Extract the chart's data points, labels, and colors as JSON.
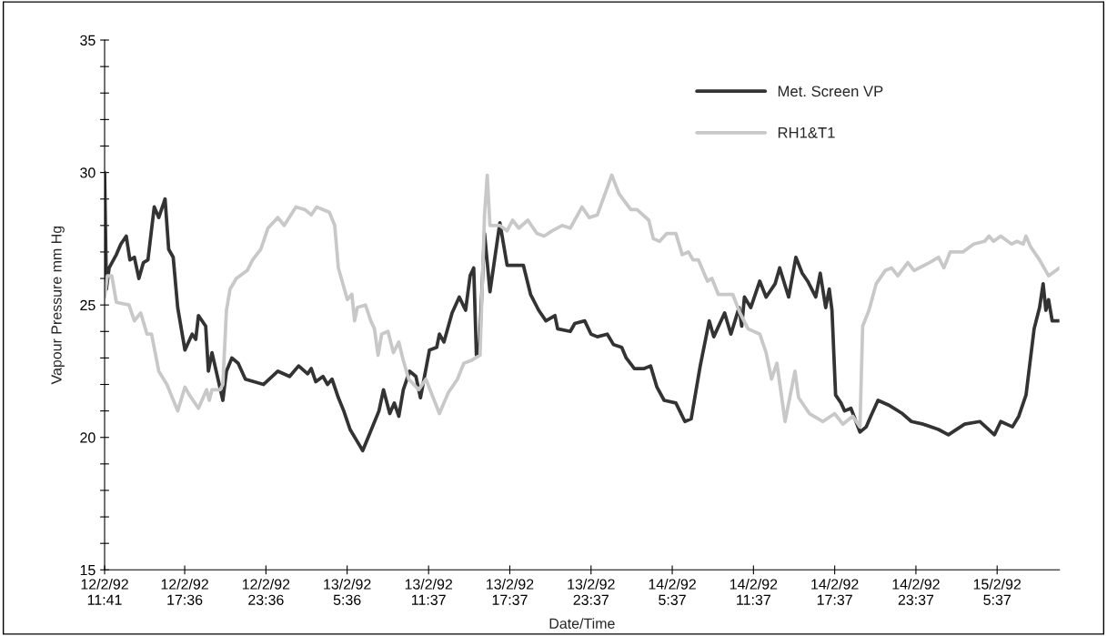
{
  "chart_data": {
    "type": "line",
    "xlabel": "Date/Time",
    "ylabel": "Vapour Pressure mm Hg",
    "xlim": [
      "1992-02-12T11:41",
      "1992-02-15T10:13"
    ],
    "ylim": [
      15,
      35
    ],
    "xticks": [
      {
        "value": "1992-02-12T11:41",
        "label": "12/2/92\n11:41"
      },
      {
        "value": "1992-02-12T17:36",
        "label": "12/2/92\n17:36"
      },
      {
        "value": "1992-02-12T23:36",
        "label": "12/2/92\n23:36"
      },
      {
        "value": "1992-02-13T05:36",
        "label": "13/2/92\n5:36"
      },
      {
        "value": "1992-02-13T11:37",
        "label": "13/2/92\n11:37"
      },
      {
        "value": "1992-02-13T17:37",
        "label": "13/2/92\n17:37"
      },
      {
        "value": "1992-02-13T23:37",
        "label": "13/2/92\n23:37"
      },
      {
        "value": "1992-02-14T05:37",
        "label": "14/2/92\n5:37"
      },
      {
        "value": "1992-02-14T11:37",
        "label": "14/2/92\n11:37"
      },
      {
        "value": "1992-02-14T17:37",
        "label": "14/2/92\n17:37"
      },
      {
        "value": "1992-02-14T23:37",
        "label": "14/2/92\n23:37"
      },
      {
        "value": "1992-02-15T05:37",
        "label": "15/2/92\n5:37"
      }
    ],
    "yticks": [
      15,
      {
        "value": 16,
        "label": null
      },
      {
        "value": 17,
        "label": null
      },
      {
        "value": 18,
        "label": null
      },
      {
        "value": 19,
        "label": null
      },
      20,
      {
        "value": 21,
        "label": null
      },
      {
        "value": 22,
        "label": null
      },
      {
        "value": 23,
        "label": null
      },
      {
        "value": 24,
        "label": null
      },
      25,
      {
        "value": 26,
        "label": null
      },
      {
        "value": 27,
        "label": null
      },
      {
        "value": 28,
        "label": null
      },
      {
        "value": 29,
        "label": null
      },
      30,
      {
        "value": 31,
        "label": null
      },
      {
        "value": 32,
        "label": null
      },
      {
        "value": 33,
        "label": null
      },
      {
        "value": 34,
        "label": null
      },
      35
    ],
    "grid": false,
    "legend": "top right",
    "marker": "none",
    "line_style": "solid",
    "series": [
      {
        "name": "Met. Screen VP",
        "color": "#333333",
        "x": [
          "1992-02-12T11:41",
          "1992-02-12T11:49",
          "1992-02-12T12:01",
          "1992-02-12T12:33",
          "1992-02-12T12:53",
          "1992-02-12T13:17",
          "1992-02-12T13:33",
          "1992-02-12T13:53",
          "1992-02-12T14:13",
          "1992-02-12T14:33",
          "1992-02-12T14:53",
          "1992-02-12T15:21",
          "1992-02-12T15:41",
          "1992-02-12T16:09",
          "1992-02-12T16:25",
          "1992-02-12T16:45",
          "1992-02-12T17:05",
          "1992-02-12T17:37",
          "1992-02-12T18:09",
          "1992-02-12T18:25",
          "1992-02-12T18:37",
          "1992-02-12T19:09",
          "1992-02-12T19:21",
          "1992-02-12T19:37",
          "1992-02-12T20:25",
          "1992-02-12T20:41",
          "1992-02-12T21:05",
          "1992-02-12T21:33",
          "1992-02-12T22:05",
          "1992-02-12T23:25",
          "1992-02-13T00:29",
          "1992-02-13T01:21",
          "1992-02-13T02:01",
          "1992-02-13T02:41",
          "1992-02-13T02:57",
          "1992-02-13T03:17",
          "1992-02-13T03:49",
          "1992-02-13T04:09",
          "1992-02-13T04:29",
          "1992-02-13T04:57",
          "1992-02-13T05:21",
          "1992-02-13T05:49",
          "1992-02-13T06:17",
          "1992-02-13T06:45",
          "1992-02-13T07:09",
          "1992-02-13T07:57",
          "1992-02-13T08:17",
          "1992-02-13T08:45",
          "1992-02-13T09:05",
          "1992-02-13T09:25",
          "1992-02-13T09:45",
          "1992-02-13T10:13",
          "1992-02-13T10:41",
          "1992-02-13T11:01",
          "1992-02-13T11:41",
          "1992-02-13T12:13",
          "1992-02-13T12:25",
          "1992-02-13T12:45",
          "1992-02-13T13:21",
          "1992-02-13T13:53",
          "1992-02-13T14:21",
          "1992-02-13T14:41",
          "1992-02-13T14:57",
          "1992-02-13T15:09",
          "1992-02-13T15:21",
          "1992-02-13T15:45",
          "1992-02-13T16:09",
          "1992-02-13T16:53",
          "1992-02-13T17:25",
          "1992-02-13T18:37",
          "1992-02-13T19:09",
          "1992-02-13T19:45",
          "1992-02-13T20:17",
          "1992-02-13T20:57",
          "1992-02-13T21:09",
          "1992-02-13T22:05",
          "1992-02-13T22:25",
          "1992-02-13T23:09",
          "1992-02-13T23:37",
          "1992-02-14T00:05",
          "1992-02-14T00:49",
          "1992-02-14T01:17",
          "1992-02-14T01:53",
          "1992-02-14T02:13",
          "1992-02-14T02:49",
          "1992-02-14T03:33",
          "1992-02-14T04:01",
          "1992-02-14T04:29",
          "1992-02-14T05:01",
          "1992-02-14T05:53",
          "1992-02-14T06:33",
          "1992-02-14T07:01",
          "1992-02-14T07:41",
          "1992-02-14T08:21",
          "1992-02-14T08:41",
          "1992-02-14T09:29",
          "1992-02-14T09:57",
          "1992-02-14T10:33",
          "1992-02-14T10:45",
          "1992-02-14T10:57",
          "1992-02-14T11:25",
          "1992-02-14T12:05",
          "1992-02-14T12:33",
          "1992-02-14T13:13",
          "1992-02-14T13:33",
          "1992-02-14T14:13",
          "1992-02-14T14:45",
          "1992-02-14T15:13",
          "1992-02-14T15:37",
          "1992-02-14T16:13",
          "1992-02-14T16:33",
          "1992-02-14T16:57",
          "1992-02-14T17:13",
          "1992-02-14T17:25",
          "1992-02-14T17:41",
          "1992-02-14T18:05",
          "1992-02-14T18:21",
          "1992-02-14T18:49",
          "1992-02-14T19:29",
          "1992-02-14T19:57",
          "1992-02-14T20:17",
          "1992-02-14T20:49",
          "1992-02-14T21:41",
          "1992-02-14T22:37",
          "1992-02-14T23:17",
          "1992-02-15T00:09",
          "1992-02-15T01:17",
          "1992-02-15T02:01",
          "1992-02-15T03:13",
          "1992-02-15T04:21",
          "1992-02-15T05:25",
          "1992-02-15T05:53",
          "1992-02-15T06:45",
          "1992-02-15T07:13",
          "1992-02-15T07:45",
          "1992-02-15T08:21",
          "1992-02-15T08:45",
          "1992-02-15T09:01",
          "1992-02-15T09:13",
          "1992-02-15T09:25",
          "1992-02-15T09:41",
          "1992-02-15T10:13"
        ],
        "values": [
          30.0,
          25.6,
          26.4,
          26.9,
          27.3,
          27.6,
          26.7,
          26.8,
          26.0,
          26.6,
          26.7,
          28.7,
          28.3,
          29.0,
          27.1,
          26.8,
          24.9,
          23.3,
          23.9,
          23.7,
          24.6,
          24.2,
          22.5,
          23.2,
          21.4,
          22.5,
          23.0,
          22.8,
          22.2,
          22.0,
          22.5,
          22.3,
          22.7,
          22.4,
          22.6,
          22.1,
          22.3,
          22.0,
          22.2,
          21.5,
          21.0,
          20.3,
          19.9,
          19.5,
          20.0,
          21.0,
          21.8,
          20.9,
          21.3,
          20.8,
          21.8,
          22.5,
          22.3,
          21.5,
          23.3,
          23.4,
          23.9,
          23.6,
          24.7,
          25.3,
          24.8,
          26.1,
          26.4,
          23.1,
          23.2,
          27.7,
          25.5,
          28.1,
          26.5,
          26.5,
          25.4,
          24.8,
          24.4,
          24.6,
          24.1,
          24.0,
          24.3,
          24.4,
          23.9,
          23.8,
          23.9,
          23.5,
          23.4,
          23.0,
          22.6,
          22.6,
          22.7,
          21.9,
          21.4,
          21.3,
          20.6,
          20.7,
          22.7,
          24.4,
          23.8,
          24.7,
          23.9,
          24.9,
          24.2,
          25.3,
          24.9,
          25.9,
          25.3,
          25.8,
          26.4,
          25.3,
          26.8,
          26.2,
          25.9,
          25.3,
          26.2,
          24.9,
          25.6,
          24.8,
          21.6,
          21.3,
          21.0,
          21.1,
          20.2,
          20.4,
          20.8,
          21.4,
          21.2,
          20.9,
          20.6,
          20.5,
          20.3,
          20.1,
          20.5,
          20.6,
          20.1,
          20.6,
          20.4,
          20.8,
          21.6,
          24.1,
          24.9,
          25.8,
          24.8,
          25.2,
          24.4,
          24.4
        ]
      },
      {
        "name": "RH1&T1",
        "color": "#c8c8c8",
        "x": [
          "1992-02-12T11:41",
          "1992-02-12T11:53",
          "1992-02-12T12:13",
          "1992-02-12T12:33",
          "1992-02-12T13:29",
          "1992-02-12T13:53",
          "1992-02-12T14:21",
          "1992-02-12T14:49",
          "1992-02-12T15:09",
          "1992-02-12T15:41",
          "1992-02-12T16:17",
          "1992-02-12T17:05",
          "1992-02-12T17:37",
          "1992-02-12T17:57",
          "1992-02-12T18:37",
          "1992-02-12T19:13",
          "1992-02-12T19:25",
          "1992-02-12T19:37",
          "1992-02-12T20:13",
          "1992-02-12T20:25",
          "1992-02-12T20:41",
          "1992-02-12T20:57",
          "1992-02-12T21:25",
          "1992-02-12T22:13",
          "1992-02-12T22:37",
          "1992-02-12T23:13",
          "1992-02-12T23:45",
          "1992-02-13T00:29",
          "1992-02-13T00:57",
          "1992-02-13T01:49",
          "1992-02-13T02:29",
          "1992-02-13T02:57",
          "1992-02-13T03:21",
          "1992-02-13T04:17",
          "1992-02-13T04:41",
          "1992-02-13T04:57",
          "1992-02-13T05:37",
          "1992-02-13T05:57",
          "1992-02-13T06:09",
          "1992-02-13T06:21",
          "1992-02-13T06:57",
          "1992-02-13T07:21",
          "1992-02-13T07:37",
          "1992-02-13T07:53",
          "1992-02-13T08:09",
          "1992-02-13T08:37",
          "1992-02-13T09:01",
          "1992-02-13T09:25",
          "1992-02-13T09:45",
          "1992-02-13T10:09",
          "1992-02-13T10:53",
          "1992-02-13T11:25",
          "1992-02-13T12:25",
          "1992-02-13T13:05",
          "1992-02-13T13:45",
          "1992-02-13T14:13",
          "1992-02-13T14:45",
          "1992-02-13T15:25",
          "1992-02-13T15:45",
          "1992-02-13T15:57",
          "1992-02-13T16:09",
          "1992-02-13T16:53",
          "1992-02-13T17:25",
          "1992-02-13T17:49",
          "1992-02-13T18:17",
          "1992-02-13T18:57",
          "1992-02-13T19:37",
          "1992-02-13T20:09",
          "1992-02-13T20:45",
          "1992-02-13T21:29",
          "1992-02-13T22:05",
          "1992-02-13T22:57",
          "1992-02-13T23:29",
          "1992-02-14T00:05",
          "1992-02-14T01:09",
          "1992-02-14T01:41",
          "1992-02-14T02:33",
          "1992-02-14T03:01",
          "1992-02-14T03:53",
          "1992-02-14T04:13",
          "1992-02-14T04:41",
          "1992-02-14T05:13",
          "1992-02-14T05:53",
          "1992-02-14T06:21",
          "1992-02-14T06:49",
          "1992-02-14T07:09",
          "1992-02-14T07:33",
          "1992-02-14T08:13",
          "1992-02-14T08:33",
          "1992-02-14T09:01",
          "1992-02-14T10:05",
          "1992-02-14T10:37",
          "1992-02-14T11:13",
          "1992-02-14T12:05",
          "1992-02-14T12:33",
          "1992-02-14T12:57",
          "1992-02-14T13:21",
          "1992-02-14T13:57",
          "1992-02-14T14:41",
          "1992-02-14T14:57",
          "1992-02-14T15:45",
          "1992-02-14T16:45",
          "1992-02-14T17:37",
          "1992-02-14T18:13",
          "1992-02-14T18:57",
          "1992-02-14T19:29",
          "1992-02-14T19:41",
          "1992-02-14T20:09",
          "1992-02-14T20:41",
          "1992-02-14T21:21",
          "1992-02-14T21:49",
          "1992-02-14T22:17",
          "1992-02-14T23:01",
          "1992-02-14T23:29",
          "1992-02-15T00:37",
          "1992-02-15T01:17",
          "1992-02-15T01:41",
          "1992-02-15T02:09",
          "1992-02-15T03:05",
          "1992-02-15T03:53",
          "1992-02-15T04:41",
          "1992-02-15T05:01",
          "1992-02-15T05:21",
          "1992-02-15T05:53",
          "1992-02-15T06:41",
          "1992-02-15T07:05",
          "1992-02-15T07:33",
          "1992-02-15T07:45",
          "1992-02-15T08:05",
          "1992-02-15T08:45",
          "1992-02-15T09:25",
          "1992-02-15T10:13"
        ],
        "values": [
          25.3,
          26.1,
          26.1,
          25.1,
          25.0,
          24.4,
          24.7,
          23.9,
          23.9,
          22.5,
          22.0,
          21.0,
          21.9,
          21.6,
          21.1,
          21.8,
          21.4,
          21.8,
          21.8,
          22.0,
          24.8,
          25.6,
          26.0,
          26.3,
          26.7,
          27.1,
          27.9,
          28.3,
          28.0,
          28.7,
          28.6,
          28.4,
          28.7,
          28.5,
          28.0,
          26.4,
          25.2,
          25.4,
          24.4,
          24.9,
          25.0,
          24.4,
          24.1,
          23.1,
          23.9,
          24.0,
          23.2,
          23.6,
          22.9,
          22.2,
          21.8,
          22.2,
          20.9,
          21.7,
          22.2,
          22.8,
          22.9,
          23.1,
          28.4,
          29.9,
          28.0,
          28.0,
          27.8,
          28.2,
          27.9,
          28.2,
          27.7,
          27.6,
          27.8,
          28.0,
          27.9,
          28.7,
          28.3,
          28.4,
          29.9,
          29.2,
          28.6,
          28.6,
          28.2,
          27.5,
          27.4,
          27.7,
          27.7,
          26.9,
          27.0,
          26.7,
          26.7,
          25.9,
          26.0,
          25.4,
          25.4,
          24.7,
          24.1,
          23.9,
          23.2,
          22.2,
          22.8,
          20.6,
          22.5,
          21.5,
          20.9,
          20.6,
          20.9,
          20.5,
          20.8,
          20.4,
          24.2,
          24.8,
          25.8,
          26.3,
          26.4,
          26.1,
          26.6,
          26.3,
          26.6,
          26.8,
          26.4,
          27.0,
          27.0,
          27.3,
          27.4,
          27.6,
          27.4,
          27.6,
          27.3,
          27.4,
          27.3,
          27.6,
          27.2,
          26.7,
          26.1,
          26.4
        ]
      }
    ]
  }
}
